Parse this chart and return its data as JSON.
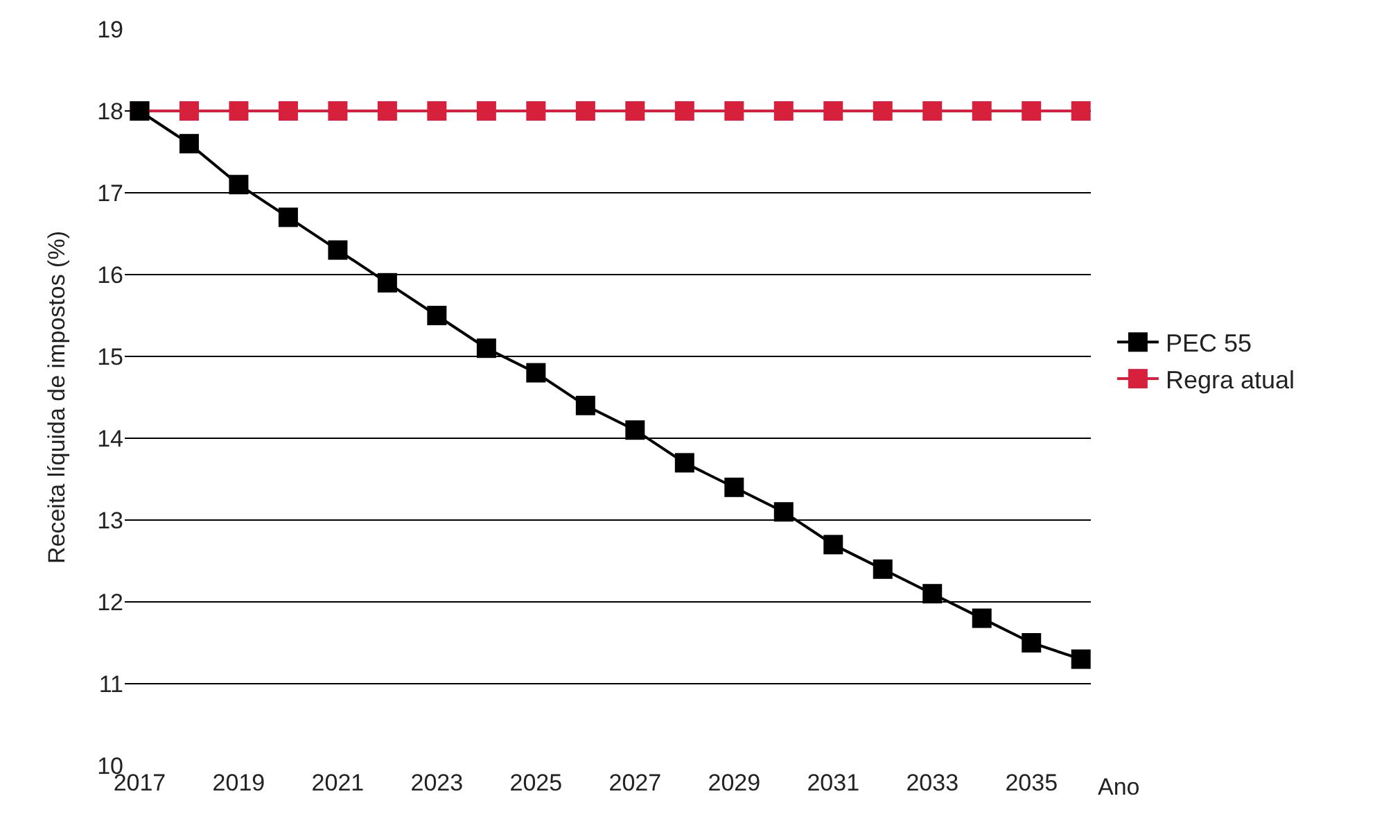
{
  "chart_data": {
    "type": "line",
    "xlabel": "Ano",
    "ylabel": "Receita líquida de impostos (%)",
    "x": [
      2017,
      2018,
      2019,
      2020,
      2021,
      2022,
      2023,
      2024,
      2025,
      2026,
      2027,
      2028,
      2029,
      2030,
      2031,
      2032,
      2033,
      2034,
      2035,
      2036
    ],
    "series": [
      {
        "name": "PEC 55",
        "color": "#000000",
        "values": [
          18,
          17.6,
          17.1,
          16.7,
          16.3,
          15.9,
          15.5,
          15.1,
          14.8,
          14.4,
          14.1,
          13.7,
          13.4,
          13.1,
          12.7,
          12.4,
          12.1,
          11.8,
          11.5,
          11.3
        ]
      },
      {
        "name": "Regra atual",
        "color": "#d6203c",
        "values": [
          18,
          18,
          18,
          18,
          18,
          18,
          18,
          18,
          18,
          18,
          18,
          18,
          18,
          18,
          18,
          18,
          18,
          18,
          18,
          18
        ]
      }
    ],
    "xlim": [
      2016.7,
      2036.2
    ],
    "xticks": [
      2017,
      2019,
      2021,
      2023,
      2025,
      2027,
      2029,
      2031,
      2033,
      2035
    ],
    "ylim": [
      10,
      19
    ],
    "yticks": [
      10,
      11,
      12,
      13,
      14,
      15,
      16,
      17,
      18,
      19
    ],
    "grid": "y",
    "legend": "right",
    "marker": "square",
    "line_style": "solid"
  }
}
